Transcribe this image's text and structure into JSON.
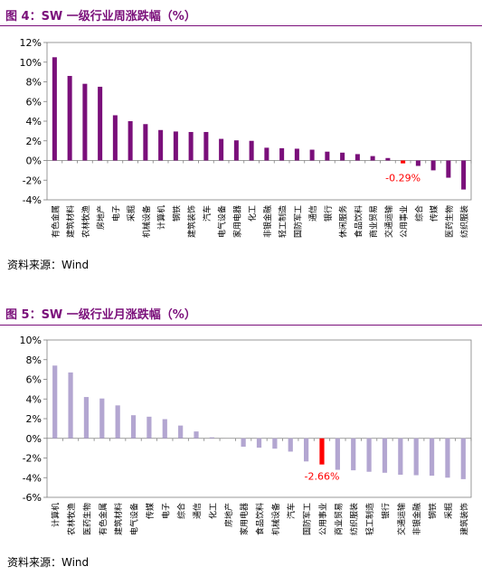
{
  "figures": [
    {
      "title": "图 4：SW 一级行业周涨跌幅（%）",
      "source": "资料来源：Wind",
      "chart_data": {
        "type": "bar",
        "title": "",
        "xlabel": "",
        "ylabel": "",
        "ylim": [
          -4,
          12
        ],
        "yticks": [
          "12%",
          "10%",
          "8%",
          "6%",
          "4%",
          "2%",
          "0%",
          "-2%",
          "-4%"
        ],
        "grid": false,
        "color": "#7a0f7a",
        "highlight_color": "#ff0000",
        "categories": [
          "有色金属",
          "建筑材料",
          "农林牧渔",
          "房地产",
          "电子",
          "采掘",
          "机械设备",
          "计算机",
          "钢铁",
          "建筑装饰",
          "汽车",
          "电气设备",
          "家用电器",
          "化工",
          "非银金融",
          "轻工制造",
          "国防军工",
          "通信",
          "银行",
          "休闲服务",
          "食品饮料",
          "商业贸易",
          "交通运输",
          "公用事业",
          "综合",
          "传媒",
          "医药生物",
          "纺织服装"
        ],
        "values": [
          10.5,
          8.6,
          7.8,
          7.5,
          4.6,
          4.0,
          3.7,
          3.1,
          2.95,
          2.9,
          2.9,
          2.2,
          2.05,
          2.0,
          1.3,
          1.25,
          1.2,
          1.1,
          0.9,
          0.8,
          0.65,
          0.45,
          0.25,
          -0.29,
          -0.55,
          -1.0,
          -1.75,
          -2.95
        ],
        "highlight_index": 23,
        "annotation": "-0.29%"
      }
    },
    {
      "title": "图 5：SW 一级行业月涨跌幅（%）",
      "source": "资料来源：Wind",
      "chart_data": {
        "type": "bar",
        "title": "",
        "xlabel": "",
        "ylabel": "",
        "ylim": [
          -6,
          10
        ],
        "yticks": [
          "10%",
          "8%",
          "6%",
          "4%",
          "2%",
          "0%",
          "-2%",
          "-4%",
          "-6%"
        ],
        "grid": false,
        "color": "#b3a6d1",
        "highlight_color": "#ff0000",
        "categories": [
          "计算机",
          "农林牧渔",
          "医药生物",
          "有色金属",
          "建筑材料",
          "电气设备",
          "传媒",
          "电子",
          "综合",
          "通信",
          "化工",
          "房地产",
          "家用电器",
          "食品饮料",
          "机械设备",
          "汽车",
          "国防军工",
          "公用事业",
          "商业贸易",
          "纺织服装",
          "轻工制造",
          "银行",
          "交通运输",
          "非银金融",
          "钢铁",
          "采掘",
          "建筑装饰"
        ],
        "values": [
          7.4,
          6.7,
          4.2,
          4.05,
          3.35,
          2.35,
          2.2,
          1.95,
          1.3,
          0.7,
          0.1,
          0.0,
          -0.85,
          -0.95,
          -1.05,
          -1.35,
          -2.35,
          -2.66,
          -3.2,
          -3.25,
          -3.4,
          -3.5,
          -3.7,
          -3.75,
          -3.8,
          -4.0,
          -4.15
        ],
        "highlight_index": 17,
        "annotation": "-2.66%"
      }
    }
  ]
}
